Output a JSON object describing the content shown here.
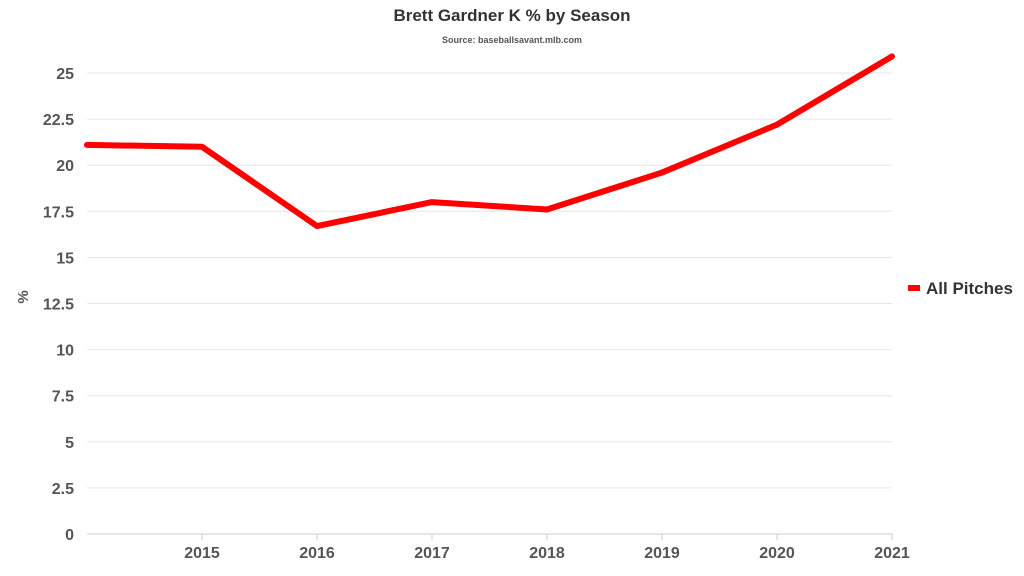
{
  "chart_data": {
    "type": "line",
    "title": "Brett Gardner K % by Season",
    "subtitle": "Source: baseballsavant.mlb.com",
    "xlabel": "",
    "ylabel": "%",
    "x": [
      2014,
      2015,
      2016,
      2017,
      2018,
      2019,
      2020,
      2021
    ],
    "x_ticks": [
      "2015",
      "2016",
      "2017",
      "2018",
      "2019",
      "2020",
      "2021"
    ],
    "y_ticks": [
      "0",
      "2.5",
      "5",
      "7.5",
      "10",
      "12.5",
      "15",
      "17.5",
      "20",
      "22.5",
      "25"
    ],
    "ylim": [
      0,
      25
    ],
    "grid": true,
    "legend_position": "right",
    "series": [
      {
        "name": "All Pitches",
        "color": "#ff0000",
        "values": [
          21.1,
          21.0,
          16.7,
          18.0,
          17.6,
          19.6,
          22.2,
          25.9
        ]
      }
    ]
  }
}
